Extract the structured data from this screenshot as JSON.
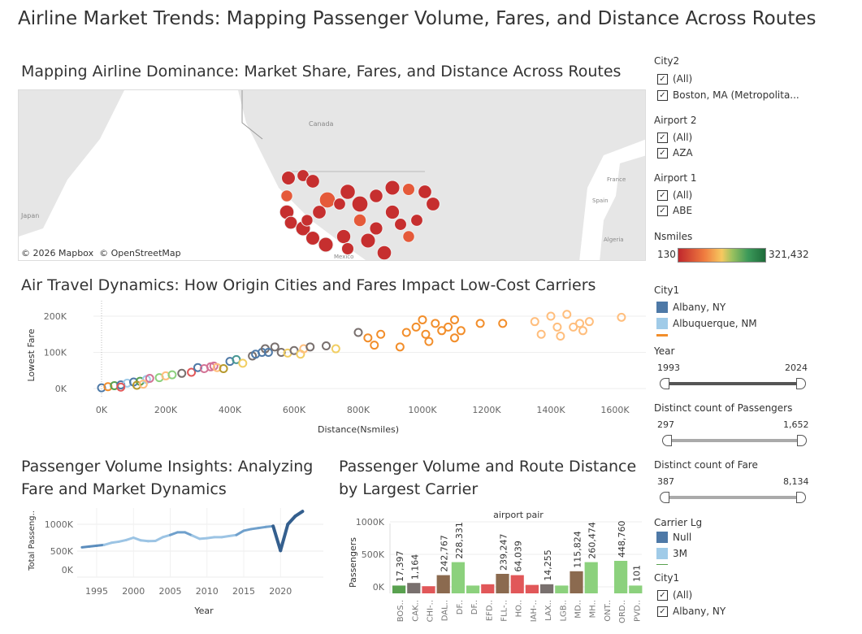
{
  "title": "Airline Market Trends: Mapping Passenger Volume, Fares, and Distance Across Routes",
  "map": {
    "title": "Mapping Airline Dominance: Market Share, Fares, and Distance Across Routes",
    "labels": {
      "canada": "Canada",
      "japan": "Japan",
      "mexico": "Mexico",
      "spain": "Spain",
      "france": "France",
      "algeria": "Algeria"
    },
    "attribution": "© 2026 Mapbox  © OpenStreetMap",
    "colors": {
      "land": "#e6e6e6",
      "water": "#ffffff",
      "mark": "#c62f2f"
    }
  },
  "scatter": {
    "title": "Air Travel Dynamics: How Origin Cities and Fares Impact Low-Cost Carriers"
  },
  "line": {
    "title_line1": "Passenger Volume Insights: Analyzing",
    "title_line2": "Fare and Market Dynamics"
  },
  "bars": {
    "title_line1": "Passenger Volume and Route Distance",
    "title_line2": "by Largest Carrier",
    "header": "airport pair"
  },
  "chart_data": [
    {
      "type": "scatter",
      "xlabel": "Distance(Nsmiles)",
      "ylabel": "Lowest Fare",
      "xlim": [
        -50000,
        1700000
      ],
      "ylim": [
        -10000,
        230000
      ],
      "xticks": [
        "0K",
        "200K",
        "400K",
        "600K",
        "800K",
        "1000K",
        "1200K",
        "1400K",
        "1600K"
      ],
      "yticks": [
        "0K",
        "100K",
        "200K"
      ],
      "palette": [
        "#4e79a7",
        "#a0cbe8",
        "#f28e2b",
        "#ffbe7d",
        "#59a14f",
        "#8cd17d",
        "#b6992d",
        "#f1ce63",
        "#499894",
        "#e15759",
        "#d37295",
        "#79706e"
      ],
      "points": [
        [
          0,
          2000,
          0
        ],
        [
          20000,
          5000,
          2
        ],
        [
          40000,
          8000,
          4
        ],
        [
          60000,
          10000,
          0
        ],
        [
          80000,
          15000,
          1
        ],
        [
          100000,
          18000,
          0
        ],
        [
          120000,
          20000,
          4
        ],
        [
          140000,
          25000,
          1
        ],
        [
          150000,
          28000,
          10
        ],
        [
          180000,
          30000,
          5
        ],
        [
          200000,
          35000,
          3
        ],
        [
          220000,
          38000,
          5
        ],
        [
          250000,
          42000,
          11
        ],
        [
          280000,
          45000,
          9
        ],
        [
          300000,
          58000,
          0
        ],
        [
          320000,
          55000,
          10
        ],
        [
          340000,
          60000,
          10
        ],
        [
          350000,
          62000,
          10
        ],
        [
          360000,
          58000,
          3
        ],
        [
          380000,
          55000,
          6
        ],
        [
          400000,
          75000,
          0
        ],
        [
          420000,
          80000,
          8
        ],
        [
          440000,
          70000,
          7
        ],
        [
          470000,
          90000,
          11
        ],
        [
          480000,
          95000,
          0
        ],
        [
          500000,
          100000,
          0
        ],
        [
          510000,
          110000,
          11
        ],
        [
          520000,
          100000,
          0
        ],
        [
          540000,
          115000,
          11
        ],
        [
          560000,
          100000,
          11
        ],
        [
          580000,
          98000,
          7
        ],
        [
          600000,
          105000,
          11
        ],
        [
          620000,
          95000,
          7
        ],
        [
          630000,
          110000,
          3
        ],
        [
          650000,
          115000,
          11
        ],
        [
          700000,
          118000,
          11
        ],
        [
          730000,
          110000,
          7
        ],
        [
          800000,
          155000,
          11
        ],
        [
          830000,
          140000,
          2
        ],
        [
          870000,
          150000,
          2
        ],
        [
          930000,
          115000,
          2
        ],
        [
          950000,
          155000,
          2
        ],
        [
          980000,
          170000,
          2
        ],
        [
          1000000,
          190000,
          2
        ],
        [
          1010000,
          150000,
          2
        ],
        [
          1020000,
          130000,
          2
        ],
        [
          1040000,
          180000,
          2
        ],
        [
          1060000,
          160000,
          2
        ],
        [
          1080000,
          170000,
          2
        ],
        [
          1100000,
          190000,
          2
        ],
        [
          1120000,
          160000,
          2
        ],
        [
          1180000,
          180000,
          2
        ],
        [
          1250000,
          180000,
          2
        ],
        [
          1350000,
          185000,
          3
        ],
        [
          1370000,
          150000,
          3
        ],
        [
          1400000,
          200000,
          3
        ],
        [
          1420000,
          170000,
          3
        ],
        [
          1430000,
          145000,
          3
        ],
        [
          1450000,
          205000,
          3
        ],
        [
          1470000,
          170000,
          3
        ],
        [
          1490000,
          180000,
          3
        ],
        [
          1500000,
          160000,
          3
        ],
        [
          1520000,
          185000,
          3
        ],
        [
          1620000,
          197000,
          3
        ],
        [
          1100000,
          140000,
          2
        ],
        [
          850000,
          120000,
          2
        ],
        [
          60000,
          4000,
          9
        ],
        [
          110000,
          9000,
          6
        ],
        [
          130000,
          12000,
          3
        ]
      ]
    },
    {
      "type": "line",
      "xlabel": "Year",
      "ylabel": "Total Passeng..",
      "xticks": [
        "1995",
        "2000",
        "2005",
        "2010",
        "2015",
        "2020"
      ],
      "yticks": [
        "0K",
        "500K",
        "1000K"
      ],
      "x": [
        1993,
        1994,
        1995,
        1996,
        1997,
        1998,
        1999,
        2000,
        2001,
        2002,
        2003,
        2004,
        2005,
        2006,
        2007,
        2008,
        2009,
        2010,
        2011,
        2012,
        2013,
        2014,
        2015,
        2016,
        2017,
        2018,
        2019,
        2020,
        2021,
        2022,
        2023
      ],
      "y": [
        570000,
        585000,
        600000,
        615000,
        655000,
        675000,
        705000,
        750000,
        700000,
        685000,
        690000,
        760000,
        800000,
        850000,
        850000,
        790000,
        730000,
        740000,
        760000,
        760000,
        780000,
        800000,
        880000,
        910000,
        930000,
        950000,
        965000,
        510000,
        1000000,
        1150000,
        1240000
      ]
    },
    {
      "type": "bar",
      "xlabel": "airport pair",
      "ylabel": "Passengers",
      "yticks": [
        "0K",
        "500K",
        "1000K"
      ],
      "categories": [
        "BOS..",
        "CAK..",
        "CHI-..",
        "DAL..",
        "DF..",
        "DF..",
        "EFD..",
        "FLL-..",
        "HO..",
        "IAH-..",
        "LAX..",
        "LGB..",
        "MD..",
        "MH..",
        "ONT..",
        "ORD..",
        "PVD.."
      ],
      "data_labels": [
        {
          "category": 0,
          "text": "17,397"
        },
        {
          "category": 1,
          "text": "1,164"
        },
        {
          "category": 3,
          "text": "242,767"
        },
        {
          "category": 4,
          "text": "228,331"
        },
        {
          "category": 7,
          "text": "239,247"
        },
        {
          "category": 8,
          "text": "64,039"
        },
        {
          "category": 10,
          "text": "14,255"
        },
        {
          "category": 12,
          "text": "115,824"
        },
        {
          "category": 13,
          "text": "260,474"
        },
        {
          "category": 15,
          "text": "448,760"
        },
        {
          "category": 16,
          "text": "101"
        }
      ],
      "values": [
        [
          20000,
          "#59a14f"
        ],
        [
          60000,
          "#79706e"
        ],
        [
          10000,
          "#e15759"
        ],
        [
          180000,
          "#8b6a4f"
        ],
        [
          380000,
          "#8cd17d"
        ],
        [
          20000,
          "#8cd17d"
        ],
        [
          40000,
          "#e15759"
        ],
        [
          200000,
          "#8b6a4f"
        ],
        [
          180000,
          "#e15759"
        ],
        [
          30000,
          "#e15759"
        ],
        [
          40000,
          "#79706e"
        ],
        [
          20000,
          "#8cd17d"
        ],
        [
          240000,
          "#8b6a4f"
        ],
        [
          380000,
          "#8cd17d"
        ],
        [
          0,
          "#ffffff"
        ],
        [
          400000,
          "#8cd17d"
        ],
        [
          20000,
          "#8cd17d"
        ]
      ]
    }
  ],
  "filters": {
    "city2": {
      "title": "City2",
      "items": [
        "(All)",
        "Boston, MA (Metropolita..."
      ]
    },
    "airport2": {
      "title": "Airport 2",
      "items": [
        "(All)",
        "AZA"
      ]
    },
    "airport1": {
      "title": "Airport 1",
      "items": [
        "(All)",
        "ABE"
      ]
    },
    "nsmiles": {
      "title": "Nsmiles",
      "min": "130",
      "max": "321,432"
    },
    "city1_legend": {
      "title": "City1",
      "items": [
        {
          "label": "Albany, NY",
          "color": "#4e79a7"
        },
        {
          "label": "Albuquerque, NM",
          "color": "#a0cbe8"
        }
      ]
    },
    "year": {
      "title": "Year",
      "min": "1993",
      "max": "2024"
    },
    "passengers": {
      "title": "Distinct count of Passengers",
      "min": "297",
      "max": "1,652"
    },
    "fare": {
      "title": "Distinct count of Fare",
      "min": "387",
      "max": "8,134"
    },
    "carrier": {
      "title": "Carrier Lg",
      "items": [
        {
          "label": "Null",
          "color": "#4e79a7"
        },
        {
          "label": "3M",
          "color": "#a0cbe8"
        }
      ]
    },
    "city1": {
      "title": "City1",
      "items": [
        "(All)",
        "Albany, NY"
      ]
    }
  }
}
